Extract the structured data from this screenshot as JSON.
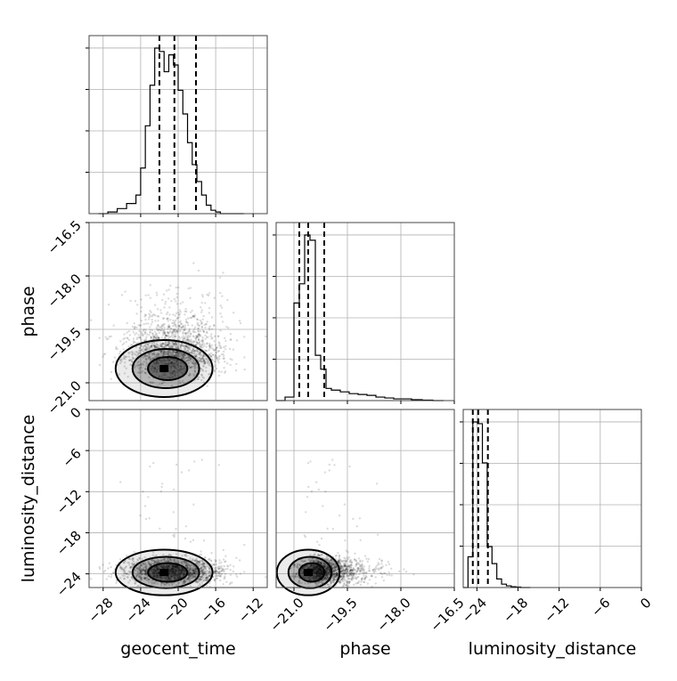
{
  "chart_data": {
    "type": "corner",
    "parameters": [
      "geocent_time",
      "phase",
      "luminosity_distance"
    ],
    "axis_labels": [
      "geocent_time",
      "phase",
      "luminosity_distance"
    ],
    "ranges": {
      "geocent_time": [
        -29.5,
        -10.5
      ],
      "phase": [
        -21.5,
        -16.5
      ],
      "luminosity_distance": [
        -26,
        0
      ]
    },
    "ticks": {
      "geocent_time": {
        "values": [
          -28,
          -24,
          -20,
          -16,
          -12
        ],
        "labels": [
          "−28",
          "−24",
          "−20",
          "−16",
          "−12"
        ]
      },
      "phase": {
        "values": [
          -21.0,
          -19.5,
          -18.0,
          -16.5
        ],
        "labels": [
          "−21.0",
          "−19.5",
          "−18.0",
          "−16.5"
        ]
      },
      "luminosity_distance": {
        "values": [
          -24,
          -18,
          -12,
          -6,
          0
        ],
        "labels": [
          "−24",
          "−18",
          "−12",
          "−6",
          "0"
        ]
      }
    },
    "grid": true,
    "histograms": {
      "geocent_time": {
        "bin_edges": [
          -28.5,
          -27.5,
          -26.5,
          -25.5,
          -24.5,
          -24,
          -23.5,
          -23,
          -22.5,
          -22,
          -21.5,
          -21,
          -20.5,
          -20,
          -19.5,
          -19,
          -18.5,
          -18,
          -17.5,
          -17,
          -16.5,
          -16,
          -15.5,
          -15,
          -14.5,
          -14,
          -13.5,
          -13
        ],
        "counts": [
          0.0,
          0.01,
          0.03,
          0.06,
          0.11,
          0.27,
          0.52,
          0.76,
          0.98,
          0.96,
          0.84,
          0.94,
          0.88,
          0.73,
          0.59,
          0.42,
          0.29,
          0.19,
          0.11,
          0.05,
          0.02,
          0.01,
          0.0,
          0.0,
          0.0,
          0.0,
          0.0
        ]
      },
      "phase": {
        "bin_edges": [
          -21.5,
          -21.25,
          -21.0,
          -20.85,
          -20.7,
          -20.55,
          -20.4,
          -20.25,
          -20.1,
          -19.95,
          -19.7,
          -19.45,
          -19.2,
          -18.95,
          -18.7,
          -18.45,
          -18.2,
          -17.95,
          -17.7,
          -17.4,
          -17.1,
          -16.8
        ],
        "counts": [
          0.0,
          0.02,
          0.56,
          0.67,
          0.95,
          0.92,
          0.26,
          0.18,
          0.07,
          0.06,
          0.05,
          0.04,
          0.035,
          0.03,
          0.02,
          0.015,
          0.01,
          0.01,
          0.005,
          0.003,
          0.0
        ]
      },
      "luminosity_distance": {
        "bin_edges": [
          -26,
          -25.3,
          -24.6,
          -23.9,
          -23.2,
          -22.5,
          -21.8,
          -21.1,
          -20.4,
          -19.7,
          -19.0,
          -18.3,
          -17.6,
          -16.9,
          -16.2
        ],
        "counts": [
          0.0,
          0.18,
          0.97,
          0.96,
          0.73,
          0.24,
          0.14,
          0.05,
          0.02,
          0.01,
          0.005,
          0.003,
          0.0,
          0.0
        ]
      }
    },
    "quantiles": {
      "geocent_time": [
        -22.0,
        -20.4,
        -18.1
      ],
      "phase": [
        -20.85,
        -20.6,
        -20.15
      ],
      "luminosity_distance": [
        -24.6,
        -23.8,
        -22.4
      ]
    },
    "scatter": {
      "geocent_time": {
        "mean": -20.5,
        "std": 2.6
      },
      "phase": {
        "mean": -20.4,
        "std": 0.55
      },
      "luminosity_distance": {
        "mean": -23.6,
        "std": 1.0
      },
      "n_points": 1700
    },
    "density_peaks": {
      "phase_vs_geocent_time": {
        "x": -21.5,
        "y": -20.6
      },
      "luminosity_distance_vs_geocent_time": {
        "x": -21.5,
        "y": -23.8
      },
      "luminosity_distance_vs_phase": {
        "x": -20.6,
        "y": -23.8
      }
    }
  }
}
